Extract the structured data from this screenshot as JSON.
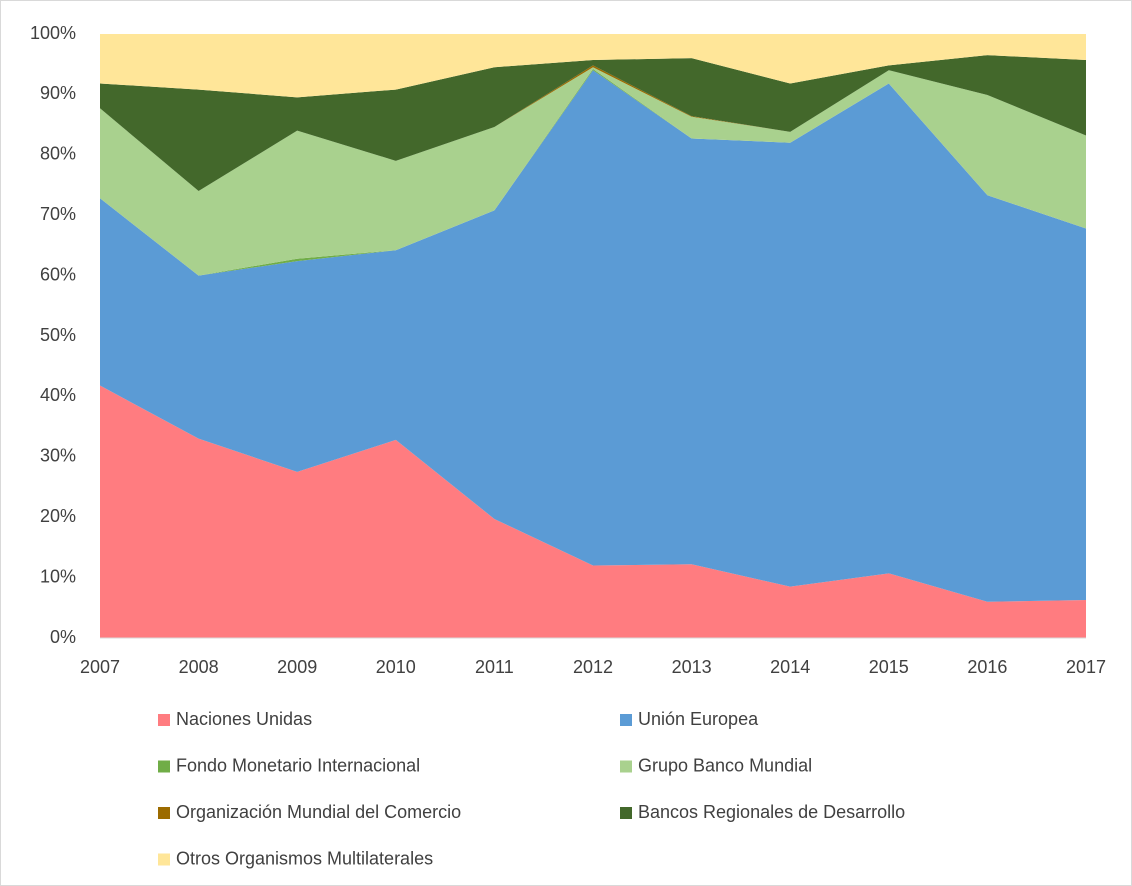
{
  "chart_data": {
    "type": "stacked-area",
    "categories": [
      "2007",
      "2008",
      "2009",
      "2010",
      "2011",
      "2012",
      "2013",
      "2014",
      "2015",
      "2016",
      "2017"
    ],
    "series": [
      {
        "name": "Naciones Unidas",
        "color": "#ff7c80",
        "values": [
          41.8,
          33,
          27.5,
          32.8,
          19.7,
          12,
          12.2,
          8.5,
          10.7,
          6,
          6.3
        ]
      },
      {
        "name": "Unión Europea",
        "color": "#5b9bd5",
        "values": [
          31,
          27,
          34.9,
          31.4,
          51.1,
          82,
          70.5,
          73.5,
          81.1,
          67.3,
          61.5
        ]
      },
      {
        "name": "Fondo Monetario Internacional",
        "color": "#70ad47",
        "values": [
          0,
          0,
          0.4,
          0,
          0,
          0.2,
          0,
          0,
          0,
          0,
          0
        ]
      },
      {
        "name": "Grupo Banco Mundial",
        "color": "#a9d18e",
        "values": [
          14.9,
          14,
          21.2,
          14.8,
          13.8,
          0.3,
          3.6,
          1.8,
          2.2,
          16.6,
          15.4
        ]
      },
      {
        "name": " Organización Mundial del Comercio",
        "color": "#9c6b00",
        "values": [
          0,
          0,
          0,
          0,
          0,
          0.3,
          0.1,
          0,
          0,
          0,
          0
        ]
      },
      {
        "name": "Bancos Regionales de Desarrollo",
        "color": "#43682b",
        "values": [
          4.1,
          16.8,
          5.5,
          11.8,
          9.9,
          0.9,
          9.6,
          8,
          0.8,
          6.6,
          12.5
        ]
      },
      {
        "name": "Otros Organismos Multilaterales",
        "color": "#ffe699",
        "values": [
          8.2,
          9.2,
          10.5,
          9.2,
          5.5,
          4.3,
          4,
          8.2,
          5.2,
          3.5,
          4.3
        ]
      }
    ],
    "ylim": [
      0,
      100
    ],
    "yticks": [
      {
        "value": 0,
        "label": "0%"
      },
      {
        "value": 10,
        "label": "10%"
      },
      {
        "value": 20,
        "label": "20%"
      },
      {
        "value": 30,
        "label": "30%"
      },
      {
        "value": 40,
        "label": "40%"
      },
      {
        "value": 50,
        "label": "50%"
      },
      {
        "value": 60,
        "label": "60%"
      },
      {
        "value": 70,
        "label": "70%"
      },
      {
        "value": 80,
        "label": "80%"
      },
      {
        "value": 90,
        "label": "90%"
      },
      {
        "value": 100,
        "label": "100%"
      }
    ],
    "grid": false,
    "legend": "bottom"
  }
}
